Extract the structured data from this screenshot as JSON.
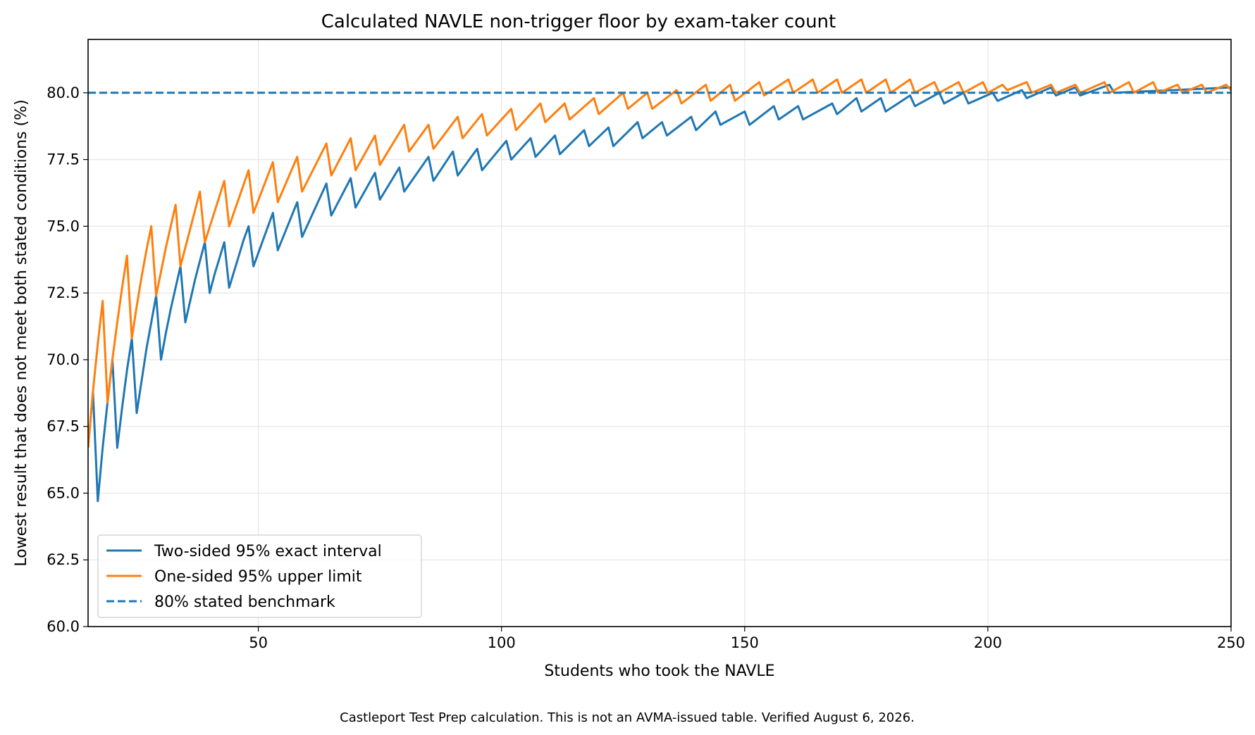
{
  "footnote": "Castleport Test Prep calculation. This is not an AVMA-issued table. Verified August 6, 2026.",
  "chart_data": {
    "type": "line",
    "title": "Calculated NAVLE non-trigger floor by exam-taker count",
    "xlabel": "Students who took the NAVLE",
    "ylabel": "Lowest result that does not meet both stated conditions (%)",
    "xlim": [
      15,
      250
    ],
    "ylim": [
      60,
      82
    ],
    "xticks": [
      50,
      100,
      150,
      200,
      250
    ],
    "yticks": [
      60.0,
      62.5,
      65.0,
      67.5,
      70.0,
      72.5,
      75.0,
      77.5,
      80.0
    ],
    "ytick_labels": [
      "60.0",
      "62.5",
      "65.0",
      "67.5",
      "70.0",
      "72.5",
      "75.0",
      "77.5",
      "80.0"
    ],
    "grid": true,
    "legend_position": "lower-left",
    "series": [
      {
        "name": "Two-sided 95% exact interval",
        "color": "#1f77b4",
        "style": "solid",
        "points": [
          [
            15,
            66.7
          ],
          [
            16,
            68.8
          ],
          [
            17,
            64.7
          ],
          [
            18,
            66.7
          ],
          [
            19,
            68.4
          ],
          [
            20,
            70.0
          ],
          [
            21,
            66.7
          ],
          [
            22,
            68.2
          ],
          [
            23,
            69.6
          ],
          [
            24,
            70.8
          ],
          [
            25,
            68.0
          ],
          [
            26,
            69.2
          ],
          [
            27,
            70.4
          ],
          [
            28,
            71.4
          ],
          [
            29,
            72.4
          ],
          [
            30,
            70.0
          ],
          [
            31,
            71.0
          ],
          [
            32,
            71.9
          ],
          [
            33,
            72.7
          ],
          [
            34,
            73.5
          ],
          [
            35,
            71.4
          ],
          [
            36,
            72.2
          ],
          [
            37,
            73.0
          ],
          [
            38,
            73.7
          ],
          [
            39,
            74.4
          ],
          [
            40,
            72.5
          ],
          [
            41,
            73.2
          ],
          [
            42,
            73.8
          ],
          [
            43,
            74.4
          ],
          [
            44,
            72.7
          ],
          [
            45,
            73.3
          ],
          [
            46,
            73.9
          ],
          [
            47,
            74.5
          ],
          [
            48,
            75.0
          ],
          [
            49,
            73.5
          ],
          [
            53,
            75.5
          ],
          [
            54,
            74.1
          ],
          [
            58,
            75.9
          ],
          [
            59,
            74.6
          ],
          [
            64,
            76.6
          ],
          [
            65,
            75.4
          ],
          [
            69,
            76.8
          ],
          [
            70,
            75.7
          ],
          [
            74,
            77.0
          ],
          [
            75,
            76.0
          ],
          [
            79,
            77.2
          ],
          [
            80,
            76.3
          ],
          [
            85,
            77.6
          ],
          [
            86,
            76.7
          ],
          [
            90,
            77.8
          ],
          [
            91,
            76.9
          ],
          [
            95,
            77.9
          ],
          [
            96,
            77.1
          ],
          [
            101,
            78.2
          ],
          [
            102,
            77.5
          ],
          [
            106,
            78.3
          ],
          [
            107,
            77.6
          ],
          [
            111,
            78.4
          ],
          [
            112,
            77.7
          ],
          [
            117,
            78.6
          ],
          [
            118,
            78.0
          ],
          [
            122,
            78.7
          ],
          [
            123,
            78.0
          ],
          [
            128,
            78.9
          ],
          [
            129,
            78.3
          ],
          [
            133,
            78.9
          ],
          [
            134,
            78.4
          ],
          [
            139,
            79.1
          ],
          [
            140,
            78.6
          ],
          [
            144,
            79.3
          ],
          [
            145,
            78.8
          ],
          [
            150,
            79.3
          ],
          [
            151,
            78.8
          ],
          [
            156,
            79.5
          ],
          [
            157,
            79.0
          ],
          [
            161,
            79.5
          ],
          [
            162,
            79.0
          ],
          [
            168,
            79.6
          ],
          [
            169,
            79.2
          ],
          [
            173,
            79.8
          ],
          [
            174,
            79.3
          ],
          [
            178,
            79.8
          ],
          [
            179,
            79.3
          ],
          [
            184,
            79.9
          ],
          [
            185,
            79.5
          ],
          [
            190,
            80.0
          ],
          [
            191,
            79.6
          ],
          [
            195,
            80.0
          ],
          [
            196,
            79.6
          ],
          [
            201,
            80.0
          ],
          [
            202,
            79.7
          ],
          [
            207,
            80.1
          ],
          [
            208,
            79.8
          ],
          [
            213,
            80.2
          ],
          [
            214,
            79.9
          ],
          [
            218,
            80.2
          ],
          [
            219,
            79.9
          ],
          [
            225,
            80.3
          ],
          [
            226,
            80.0
          ],
          [
            250,
            80.2
          ]
        ]
      },
      {
        "name": "One-sided 95% upper limit",
        "color": "#ff7f0e",
        "style": "solid",
        "points": [
          [
            15,
            66.7
          ],
          [
            16,
            68.8
          ],
          [
            17,
            70.6
          ],
          [
            18,
            72.2
          ],
          [
            19,
            68.4
          ],
          [
            20,
            70.0
          ],
          [
            21,
            71.4
          ],
          [
            22,
            72.7
          ],
          [
            23,
            73.9
          ],
          [
            24,
            70.8
          ],
          [
            25,
            72.0
          ],
          [
            26,
            73.1
          ],
          [
            27,
            74.1
          ],
          [
            28,
            75.0
          ],
          [
            29,
            72.4
          ],
          [
            30,
            73.3
          ],
          [
            31,
            74.2
          ],
          [
            32,
            75.0
          ],
          [
            33,
            75.8
          ],
          [
            34,
            73.5
          ],
          [
            38,
            76.3
          ],
          [
            39,
            74.4
          ],
          [
            43,
            76.7
          ],
          [
            44,
            75.0
          ],
          [
            48,
            77.1
          ],
          [
            49,
            75.5
          ],
          [
            53,
            77.4
          ],
          [
            54,
            75.9
          ],
          [
            58,
            77.6
          ],
          [
            59,
            76.3
          ],
          [
            64,
            78.1
          ],
          [
            65,
            76.9
          ],
          [
            69,
            78.3
          ],
          [
            70,
            77.1
          ],
          [
            74,
            78.4
          ],
          [
            75,
            77.3
          ],
          [
            80,
            78.8
          ],
          [
            81,
            77.8
          ],
          [
            85,
            78.8
          ],
          [
            86,
            77.9
          ],
          [
            91,
            79.1
          ],
          [
            92,
            78.3
          ],
          [
            96,
            79.2
          ],
          [
            97,
            78.4
          ],
          [
            102,
            79.4
          ],
          [
            103,
            78.6
          ],
          [
            108,
            79.6
          ],
          [
            109,
            78.9
          ],
          [
            113,
            79.6
          ],
          [
            114,
            79.0
          ],
          [
            119,
            79.8
          ],
          [
            120,
            79.2
          ],
          [
            125,
            80.0
          ],
          [
            126,
            79.4
          ],
          [
            130,
            80.0
          ],
          [
            131,
            79.4
          ],
          [
            136,
            80.1
          ],
          [
            137,
            79.6
          ],
          [
            142,
            80.3
          ],
          [
            143,
            79.7
          ],
          [
            147,
            80.3
          ],
          [
            148,
            79.7
          ],
          [
            153,
            80.4
          ],
          [
            154,
            79.9
          ],
          [
            159,
            80.5
          ],
          [
            160,
            80.0
          ],
          [
            164,
            80.5
          ],
          [
            165,
            80.0
          ],
          [
            169,
            80.5
          ],
          [
            170,
            80.0
          ],
          [
            174,
            80.5
          ],
          [
            175,
            80.0
          ],
          [
            179,
            80.5
          ],
          [
            180,
            80.0
          ],
          [
            184,
            80.5
          ],
          [
            185,
            80.0
          ],
          [
            189,
            80.4
          ],
          [
            190,
            80.0
          ],
          [
            194,
            80.4
          ],
          [
            195,
            80.0
          ],
          [
            199,
            80.4
          ],
          [
            200,
            80.0
          ],
          [
            203,
            80.3
          ],
          [
            204,
            80.1
          ],
          [
            208,
            80.4
          ],
          [
            209,
            80.0
          ],
          [
            213,
            80.3
          ],
          [
            214,
            80.0
          ],
          [
            218,
            80.3
          ],
          [
            219,
            80.0
          ],
          [
            224,
            80.4
          ],
          [
            225,
            80.0
          ],
          [
            229,
            80.4
          ],
          [
            230,
            80.0
          ],
          [
            234,
            80.4
          ],
          [
            235,
            80.0
          ],
          [
            239,
            80.3
          ],
          [
            240,
            80.0
          ],
          [
            244,
            80.3
          ],
          [
            245,
            80.0
          ],
          [
            249,
            80.3
          ],
          [
            250,
            80.1
          ]
        ]
      },
      {
        "name": "80% stated benchmark",
        "color": "#1f77b4",
        "style": "dashed",
        "points": [
          [
            15,
            80.0
          ],
          [
            250,
            80.0
          ]
        ]
      }
    ]
  }
}
